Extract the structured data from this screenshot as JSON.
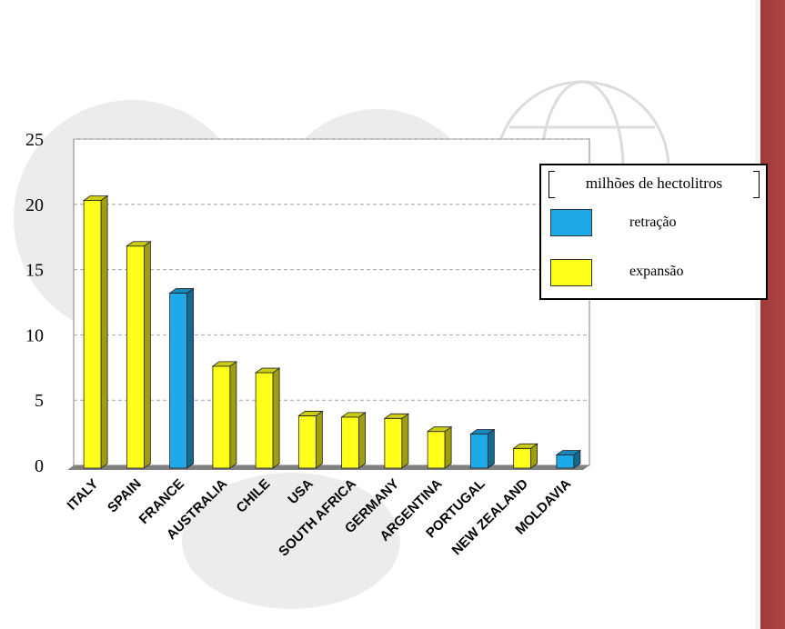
{
  "chart_data": {
    "type": "bar",
    "categories": [
      "ITALY",
      "SPAIN",
      "FRANCE",
      "AUSTRALIA",
      "CHILE",
      "USA",
      "SOUTH AFRICA",
      "GERMANY",
      "ARGENTINA",
      "PORTUGAL",
      "NEW ZEALAND",
      "MOLDAVIA"
    ],
    "values": [
      20.3,
      16.8,
      13.2,
      7.6,
      7.1,
      3.8,
      3.7,
      3.6,
      2.6,
      2.4,
      1.3,
      0.8
    ],
    "groups": [
      "expansão",
      "expansão",
      "retração",
      "expansão",
      "expansão",
      "expansão",
      "expansão",
      "expansão",
      "expansão",
      "retração",
      "expansão",
      "retração"
    ],
    "ylim": [
      0,
      25
    ],
    "yticks": [
      "0",
      "5",
      "10",
      "15",
      "20",
      "25"
    ],
    "grid": true,
    "legend": {
      "title": "milhões de hectolitros",
      "items": [
        {
          "label": "retração",
          "color": "#1ea9e8"
        },
        {
          "label": "expansão",
          "color": "#ffff1a"
        }
      ],
      "position": "top-right"
    }
  }
}
